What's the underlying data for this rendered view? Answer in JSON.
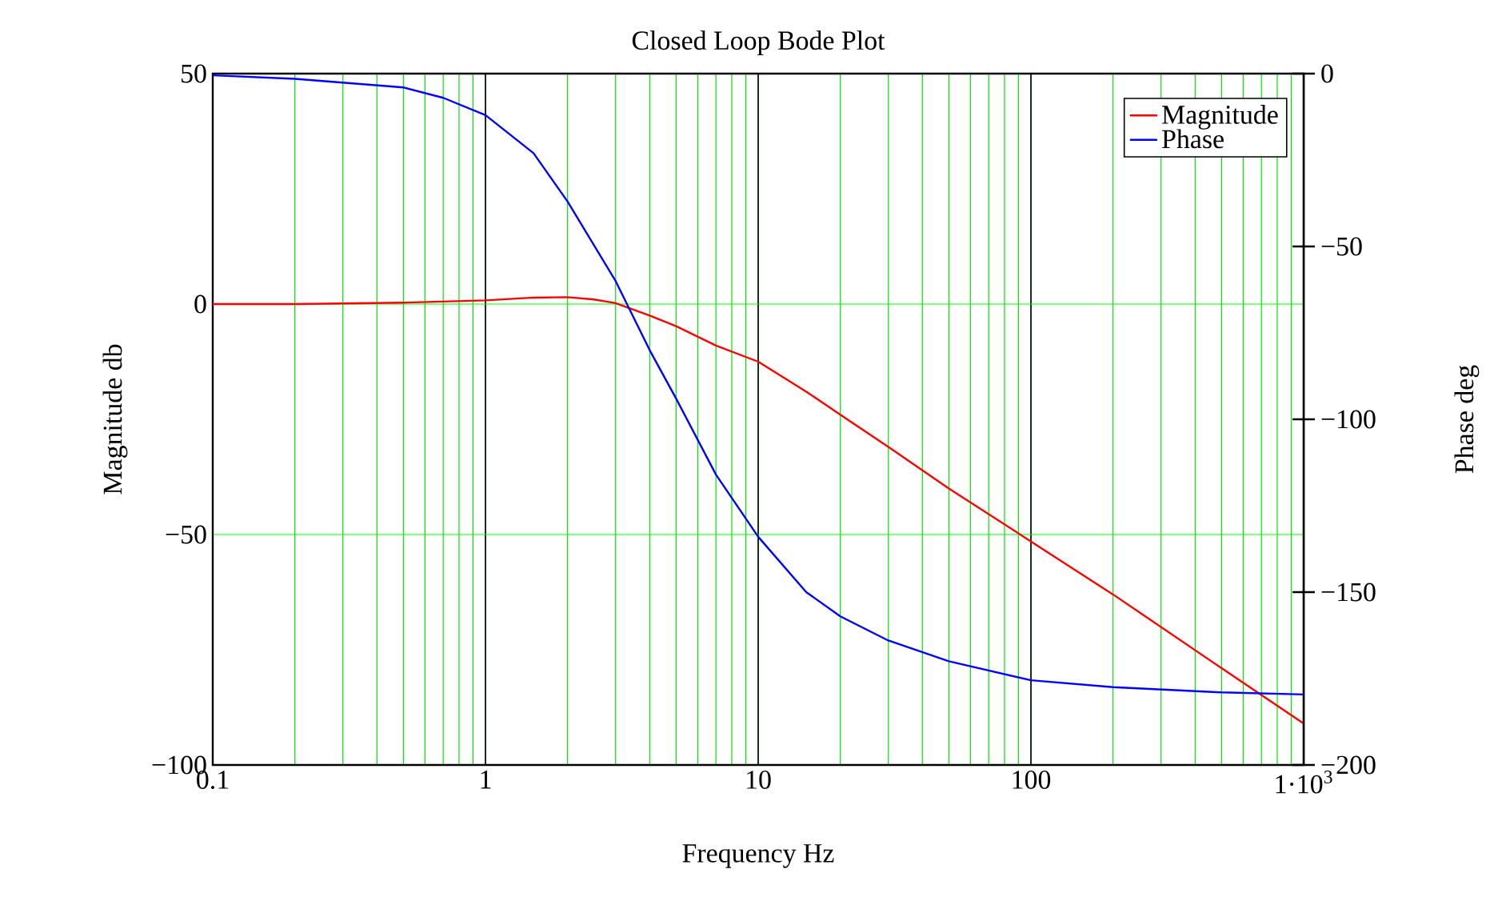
{
  "chart_data": {
    "type": "line",
    "title": "Closed Loop Bode Plot",
    "xlabel": "Frequency  Hz",
    "ylabel": "Magnitude db",
    "y2label": "Phase deg",
    "log": "x",
    "grid": true,
    "legend": "top right",
    "xlim": [
      0.1,
      1000
    ],
    "xticks": [
      0.1,
      1,
      10,
      100,
      {
        "value": 1000,
        "label": "1·10$^{3}$"
      }
    ],
    "ylim": [
      -100,
      50
    ],
    "yticks": [
      {
        "value": -100,
        "label": "−100"
      },
      {
        "value": -50,
        "label": "−50"
      },
      0,
      50
    ],
    "y2lim": [
      -200,
      0
    ],
    "y2ticks": [
      {
        "value": -200,
        "label": "−200"
      },
      {
        "value": -150,
        "label": "−150"
      },
      {
        "value": -100,
        "label": "−100"
      },
      {
        "value": -50,
        "label": "−50"
      },
      0
    ],
    "series": [
      {
        "name": "Magnitude",
        "color": "#ff0000",
        "x": [
          0.1,
          0.2,
          0.5,
          1,
          1.5,
          2,
          2.5,
          3,
          4,
          5,
          7,
          10,
          15,
          20,
          30,
          50,
          100,
          200,
          500,
          1000
        ],
        "values": [
          0,
          0,
          0.3,
          0.8,
          1.4,
          1.5,
          1.0,
          0.2,
          -2.5,
          -4.8,
          -9,
          -12.5,
          -19,
          -24,
          -31,
          -40,
          -51.5,
          -63,
          -79,
          -91
        ]
      },
      {
        "name": "Phase",
        "color": "#0000ff",
        "axis": "y2",
        "x": [
          0.1,
          0.2,
          0.5,
          0.7,
          1,
          1.5,
          2,
          3,
          4,
          5,
          7,
          10,
          15,
          20,
          30,
          50,
          100,
          200,
          500,
          1000
        ],
        "values": [
          -0.5,
          -1.5,
          -4,
          -7,
          -12,
          -23,
          -37,
          -60,
          -80,
          -94,
          -116,
          -134,
          -150,
          -157,
          -164,
          -170,
          -175.5,
          -177.5,
          -179,
          -179.6
        ]
      }
    ]
  }
}
